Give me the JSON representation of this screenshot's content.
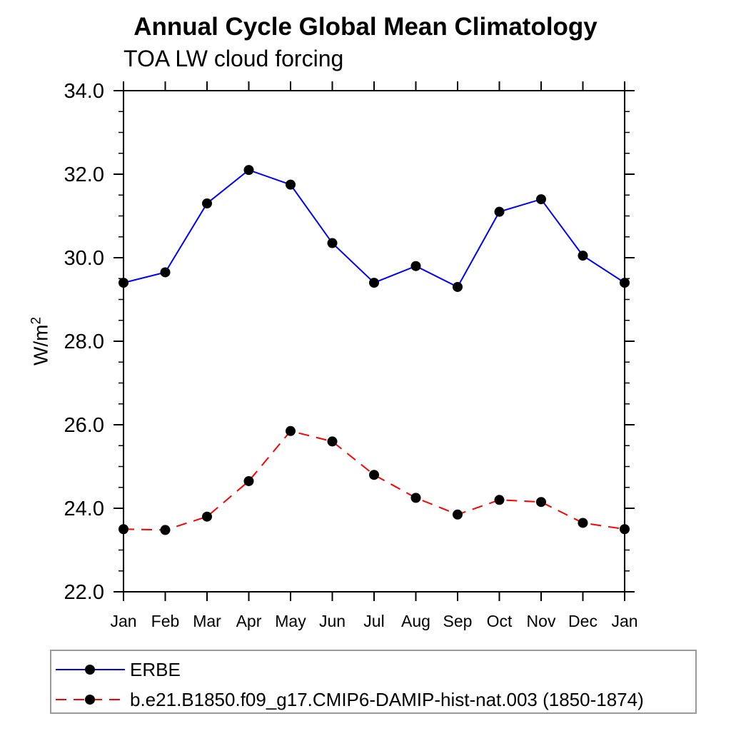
{
  "title": "Annual Cycle Global Mean Climatology",
  "subtitle": "TOA LW cloud forcing",
  "y_axis_title": {
    "base": "W/m",
    "sup": "2"
  },
  "chart_data": {
    "type": "line",
    "title": "Annual Cycle Global Mean Climatology",
    "subtitle": "TOA LW cloud forcing",
    "ylabel": "W/m^2",
    "xlabel": "",
    "x_categories": [
      "Jan",
      "Feb",
      "Mar",
      "Apr",
      "May",
      "Jun",
      "Jul",
      "Aug",
      "Sep",
      "Oct",
      "Nov",
      "Dec",
      "Jan"
    ],
    "ylim": [
      22.0,
      34.0
    ],
    "ytick_major": [
      22.0,
      24.0,
      26.0,
      28.0,
      30.0,
      32.0,
      34.0
    ],
    "ytick_labels": [
      "22.0",
      "24.0",
      "26.0",
      "28.0",
      "30.0",
      "32.0",
      "34.0"
    ],
    "ytick_minor_step": 0.5,
    "grid": false,
    "frame": "box-with-outward-ticks",
    "legend_position": "bottom-left-boxed",
    "marker": {
      "shape": "circle",
      "color": "#000000",
      "radius": 7
    },
    "axis_color": "#000000",
    "series": [
      {
        "name": "ERBE",
        "color": "#0000ff",
        "line_style": "solid",
        "values": [
          29.4,
          29.65,
          31.3,
          32.1,
          31.75,
          30.35,
          29.4,
          29.8,
          29.3,
          31.1,
          31.4,
          30.05,
          29.4
        ]
      },
      {
        "name": "b.e21.B1850.f09_g17.CMIP6-DAMIP-hist-nat.003 (1850-1874)",
        "color": "#ff0000",
        "line_style": "dashed",
        "values": [
          23.5,
          23.48,
          23.8,
          24.65,
          25.85,
          25.6,
          24.8,
          24.25,
          23.85,
          24.2,
          24.15,
          23.65,
          23.5
        ]
      }
    ]
  }
}
